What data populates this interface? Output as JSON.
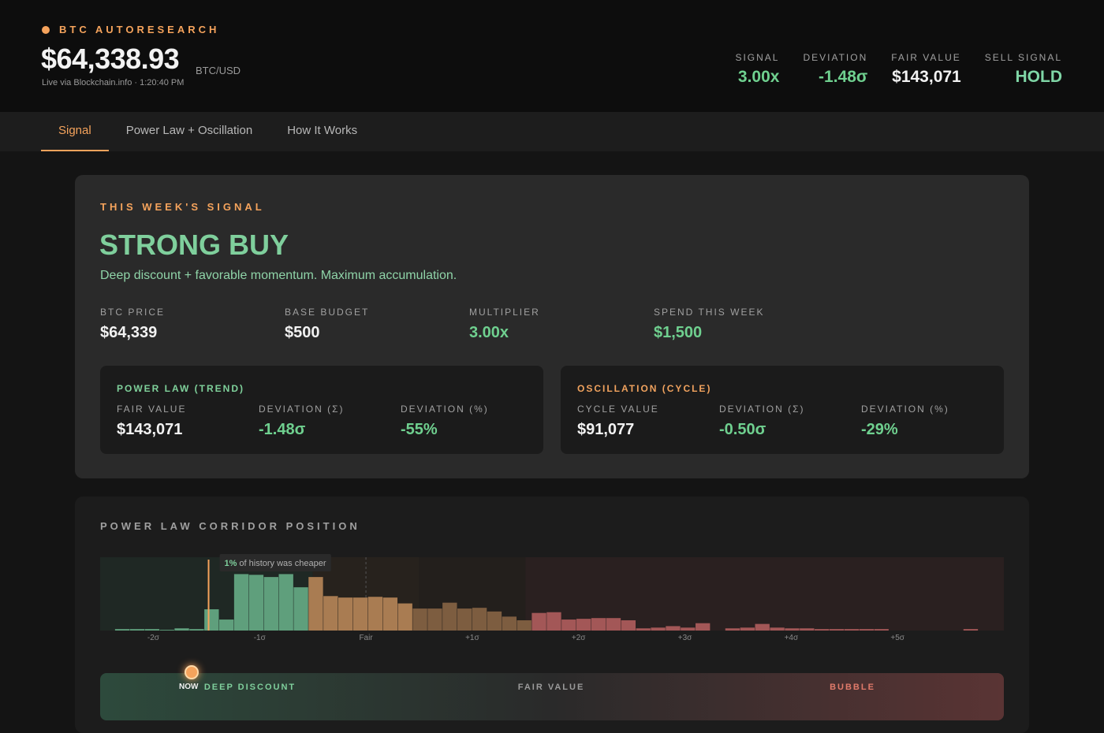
{
  "header": {
    "brand": "BTC AUTORESEARCH",
    "price": "$64,338.93",
    "pair": "BTC/USD",
    "source": "Live via Blockchain.info · 1:20:40 PM",
    "stats": [
      {
        "label": "SIGNAL",
        "value": "3.00x",
        "color": "#6fd08f"
      },
      {
        "label": "DEVIATION",
        "value": "-1.48σ",
        "color": "#6fd08f"
      },
      {
        "label": "FAIR VALUE",
        "value": "$143,071",
        "color": "#f2f2f2"
      },
      {
        "label": "SELL SIGNAL",
        "value": "HOLD",
        "color": "#7fd6a6"
      }
    ]
  },
  "tabs": {
    "items": [
      "Signal",
      "Power Law + Oscillation",
      "How It Works"
    ],
    "active": 0
  },
  "signal": {
    "label": "THIS WEEK'S SIGNAL",
    "verdict": "STRONG BUY",
    "description": "Deep discount + favorable momentum. Maximum accumulation.",
    "metrics": [
      {
        "label": "BTC PRICE",
        "value": "$64,339",
        "color": "#f2f2f2"
      },
      {
        "label": "BASE BUDGET",
        "value": "$500",
        "color": "#f2f2f2"
      },
      {
        "label": "MULTIPLIER",
        "value": "3.00x",
        "color": "#6fd08f"
      },
      {
        "label": "SPEND THIS WEEK",
        "value": "$1,500",
        "color": "#6fd08f"
      }
    ],
    "panels": [
      {
        "title": "POWER LAW (TREND)",
        "color": "#7fd19b",
        "items": [
          {
            "label": "FAIR VALUE",
            "value": "$143,071",
            "color": "#f2f2f2"
          },
          {
            "label": "DEVIATION (Σ)",
            "value": "-1.48σ",
            "color": "#6fd08f"
          },
          {
            "label": "DEVIATION (%)",
            "value": "-55%",
            "color": "#6fd08f"
          }
        ]
      },
      {
        "title": "OSCILLATION (CYCLE)",
        "color": "#f0a25e",
        "items": [
          {
            "label": "CYCLE VALUE",
            "value": "$91,077",
            "color": "#f2f2f2"
          },
          {
            "label": "DEVIATION (Σ)",
            "value": "-0.50σ",
            "color": "#6fd08f"
          },
          {
            "label": "DEVIATION (%)",
            "value": "-29%",
            "color": "#6fd08f"
          }
        ]
      }
    ]
  },
  "chart_data": {
    "type": "histogram",
    "title": "POWER LAW CORRIDOR POSITION",
    "bins": [
      -2.5,
      -2.36,
      -2.22,
      -2.08,
      -1.94,
      -1.8,
      -1.66,
      -1.52,
      -1.38,
      -1.24,
      -1.1,
      -0.96,
      -0.82,
      -0.68,
      -0.54,
      -0.4,
      -0.26,
      -0.12,
      0.02,
      0.16,
      0.3,
      0.44,
      0.58,
      0.72,
      0.86,
      1.0,
      1.14,
      1.28,
      1.42,
      1.56,
      1.7,
      1.84,
      1.98,
      2.12,
      2.26,
      2.4,
      2.54,
      2.68,
      2.82,
      2.96,
      3.1,
      3.24,
      3.38,
      3.52,
      3.66,
      3.8,
      3.94,
      4.08,
      4.22,
      4.36,
      4.5,
      4.64,
      4.78,
      4.92,
      5.06,
      5.2,
      5.34,
      5.48,
      5.62,
      5.76,
      5.9
    ],
    "values": [
      0,
      2,
      2,
      2,
      1,
      3,
      2,
      29,
      15,
      77,
      76,
      73,
      77,
      59,
      73,
      47,
      45,
      45,
      46,
      45,
      37,
      30,
      30,
      38,
      30,
      31,
      26,
      19,
      14,
      24,
      25,
      15,
      16,
      17,
      17,
      14,
      3,
      4,
      6,
      4,
      10,
      0,
      3,
      4,
      9,
      4,
      3,
      3,
      2,
      2,
      2,
      2,
      2,
      0,
      0,
      0,
      0,
      0,
      2,
      0
    ],
    "xlim": [
      -2.5,
      6
    ],
    "ylim": [
      0,
      100
    ],
    "xticks": [
      {
        "value": -2,
        "label": "-2σ"
      },
      {
        "value": -1,
        "label": "-1σ"
      },
      {
        "value": 0,
        "label": "Fair"
      },
      {
        "value": 1,
        "label": "+1σ"
      },
      {
        "value": 2,
        "label": "+2σ"
      },
      {
        "value": 3,
        "label": "+3σ"
      },
      {
        "value": 4,
        "label": "+4σ"
      },
      {
        "value": 5,
        "label": "+5σ"
      }
    ],
    "reference_line": 0,
    "zones": [
      {
        "from": -2.5,
        "to": -0.5,
        "color": "#5f9f7c",
        "background": "#1f2824"
      },
      {
        "from": -0.5,
        "to": 0.5,
        "color": "#a97c52",
        "background": "#27221d"
      },
      {
        "from": 0.5,
        "to": 1.5,
        "color": "#7d5d40",
        "background": "#231f1c"
      },
      {
        "from": 1.5,
        "to": 6,
        "color": "#a35757",
        "background": "#2a2020"
      }
    ],
    "marker": {
      "value": -1.48,
      "color": "#f5a35c"
    },
    "annotation": {
      "emphasis": "1%",
      "text": "of history was cheaper"
    }
  },
  "corridor": {
    "labels": [
      "DEEP DISCOUNT",
      "FAIR VALUE",
      "BUBBLE"
    ],
    "now": "NOW"
  }
}
